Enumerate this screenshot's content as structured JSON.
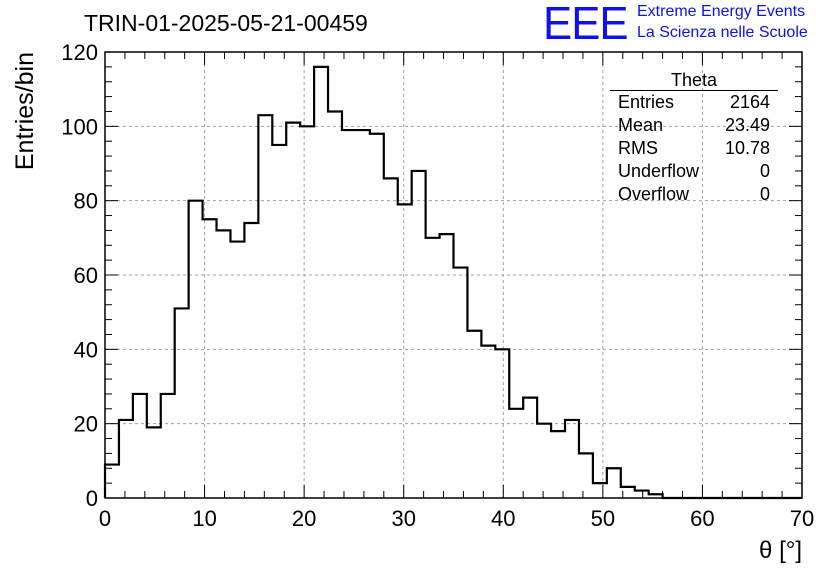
{
  "header": {
    "run_title": "TRIN-01-2025-05-21-00459",
    "logo_text": "EEE",
    "logo_line1": "Extreme Energy Events",
    "logo_line2": "La Scienza nelle Scuole"
  },
  "stats": {
    "title": "Theta",
    "rows": [
      {
        "label": "Entries",
        "value": "2164"
      },
      {
        "label": "Mean",
        "value": "23.49"
      },
      {
        "label": "RMS",
        "value": "10.78"
      },
      {
        "label": "Underflow",
        "value": "0"
      },
      {
        "label": "Overflow",
        "value": "0"
      }
    ]
  },
  "colors": {
    "line": "#000000",
    "grid": "#a0a0a0",
    "logo": "#1010ee"
  },
  "chart_data": {
    "type": "bar",
    "title": "TRIN-01-2025-05-21-00459",
    "xlabel": "θ [°]",
    "ylabel": "Entries/bin",
    "xlim": [
      0,
      70
    ],
    "ylim": [
      0,
      120
    ],
    "bin_width": 1.4,
    "bin_edges_start": 0,
    "x_ticks": [
      0,
      10,
      20,
      30,
      40,
      50,
      60,
      70
    ],
    "y_ticks": [
      0,
      20,
      40,
      60,
      80,
      100,
      120
    ],
    "grid": true,
    "legend_position": "top-right",
    "values": [
      9,
      21,
      28,
      19,
      28,
      51,
      80,
      75,
      72,
      69,
      74,
      103,
      95,
      101,
      100,
      116,
      104,
      99,
      99,
      98,
      86,
      79,
      88,
      70,
      71,
      62,
      45,
      41,
      40,
      24,
      27,
      20,
      18,
      21,
      12,
      4,
      8,
      3,
      2,
      1,
      0,
      0,
      0,
      0,
      0,
      0,
      0,
      0,
      0,
      0
    ]
  }
}
